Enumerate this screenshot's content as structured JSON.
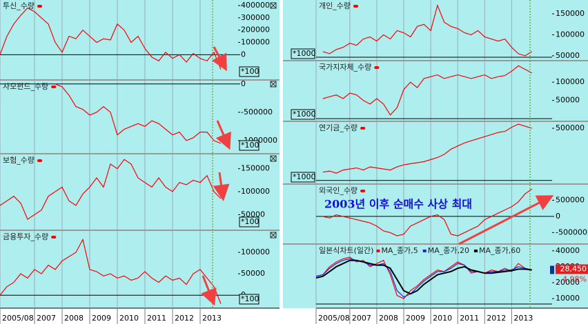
{
  "chart_data": [
    {
      "type": "line",
      "title": "투신_수량",
      "unit_label": "*100",
      "x": [
        2005.75,
        2006,
        2006.25,
        2006.5,
        2006.75,
        2007,
        2007.25,
        2007.5,
        2007.75,
        2008,
        2008.25,
        2008.5,
        2008.75,
        2009,
        2009.25,
        2009.5,
        2009.75,
        2010,
        2010.25,
        2010.5,
        2010.75,
        2011,
        2011.25,
        2011.5,
        2011.75,
        2012,
        2012.25,
        2012.5,
        2012.75,
        2013,
        2013.25,
        2013.5,
        2013.75
      ],
      "xlim": [
        2005.75,
        2014.375
      ],
      "ylim": [
        -200000,
        445000
      ],
      "yticks": [
        0,
        100000,
        200000,
        300000,
        400000
      ],
      "series": [
        {
          "color": "#ff0000",
          "values": [
            0,
            150000,
            250000,
            320000,
            380000,
            350000,
            300000,
            250000,
            100000,
            20000,
            150000,
            130000,
            200000,
            150000,
            100000,
            130000,
            120000,
            250000,
            200000,
            100000,
            150000,
            50000,
            -20000,
            -50000,
            20000,
            -30000,
            0,
            -60000,
            10000,
            -30000,
            -50000,
            20000,
            -120000
          ]
        }
      ]
    },
    {
      "type": "line",
      "title": "사모펀드_수량",
      "unit_label": "*100",
      "x": [
        2005.75,
        2006,
        2006.25,
        2006.5,
        2006.75,
        2007,
        2007.25,
        2007.5,
        2007.75,
        2008,
        2008.25,
        2008.5,
        2008.75,
        2009,
        2009.25,
        2009.5,
        2009.75,
        2010,
        2010.25,
        2010.5,
        2010.75,
        2011,
        2011.25,
        2011.5,
        2011.75,
        2012,
        2012.25,
        2012.5,
        2012.75,
        2013,
        2013.25,
        2013.5,
        2013.75
      ],
      "xlim": [
        2005.75,
        2014.375
      ],
      "ylim": [
        -1220000,
        58000
      ],
      "yticks": [
        -1000000,
        -500000,
        0
      ],
      "series": [
        {
          "color": "#ff0000",
          "values": [
            null,
            null,
            null,
            null,
            null,
            null,
            null,
            null,
            0,
            -50000,
            -200000,
            -400000,
            -450000,
            -550000,
            -500000,
            -400000,
            -500000,
            -900000,
            -800000,
            -750000,
            -700000,
            -750000,
            -650000,
            -700000,
            -800000,
            -900000,
            -850000,
            -1000000,
            -950000,
            -850000,
            -850000,
            -1000000,
            -1050000
          ]
        }
      ]
    },
    {
      "type": "line",
      "title": "보험_수량",
      "unit_label": "*100",
      "x": [
        2005.75,
        2006,
        2006.25,
        2006.5,
        2006.75,
        2007,
        2007.25,
        2007.5,
        2007.75,
        2008,
        2008.25,
        2008.5,
        2008.75,
        2009,
        2009.25,
        2009.5,
        2009.75,
        2010,
        2010.25,
        2010.5,
        2010.75,
        2011,
        2011.25,
        2011.5,
        2011.75,
        2012,
        2012.25,
        2012.5,
        2012.75,
        2013,
        2013.25,
        2013.5,
        2013.75
      ],
      "xlim": [
        2005.75,
        2014.375
      ],
      "ylim": [
        17600,
        181000
      ],
      "yticks": [
        50000,
        100000,
        150000
      ],
      "series": [
        {
          "color": "#ff0000",
          "values": [
            70000,
            80000,
            90000,
            75000,
            40000,
            50000,
            60000,
            90000,
            100000,
            110000,
            80000,
            70000,
            95000,
            110000,
            130000,
            110000,
            160000,
            150000,
            170000,
            160000,
            130000,
            120000,
            110000,
            130000,
            110000,
            100000,
            120000,
            115000,
            125000,
            120000,
            135000,
            100000,
            85000
          ]
        }
      ]
    },
    {
      "type": "line",
      "title": "금융투자_수량",
      "unit_label": "*100",
      "x": [
        2005.75,
        2006,
        2006.25,
        2006.5,
        2006.75,
        2007,
        2007.25,
        2007.5,
        2007.75,
        2008,
        2008.25,
        2008.5,
        2008.75,
        2009,
        2009.25,
        2009.5,
        2009.75,
        2010,
        2010.25,
        2010.5,
        2010.75,
        2011,
        2011.25,
        2011.5,
        2011.75,
        2012,
        2012.25,
        2012.5,
        2012.75,
        2013,
        2013.25,
        2013.5,
        2013.75
      ],
      "xlim": [
        2005.75,
        2014.375
      ],
      "ylim": [
        -27000,
        150000
      ],
      "yticks": [
        0,
        50000,
        100000
      ],
      "xticks": [
        {
          "value": 2005.75,
          "label": "2005/08"
        },
        2007,
        2008,
        2009,
        2010,
        2011,
        2012,
        2013
      ],
      "series": [
        {
          "color": "#ff0000",
          "values": [
            0,
            20000,
            30000,
            50000,
            40000,
            60000,
            50000,
            70000,
            60000,
            80000,
            90000,
            100000,
            130000,
            60000,
            55000,
            45000,
            50000,
            40000,
            45000,
            35000,
            40000,
            55000,
            40000,
            30000,
            45000,
            35000,
            40000,
            25000,
            50000,
            60000,
            40000,
            20000,
            -20000
          ]
        }
      ]
    },
    {
      "type": "line",
      "title": "개인_수량",
      "unit_label": "*1000",
      "x": [
        2005.75,
        2006,
        2006.25,
        2006.5,
        2006.75,
        2007,
        2007.25,
        2007.5,
        2007.75,
        2008,
        2008.25,
        2008.5,
        2008.75,
        2009,
        2009.25,
        2009.5,
        2009.75,
        2010,
        2010.25,
        2010.5,
        2010.75,
        2011,
        2011.25,
        2011.5,
        2011.75,
        2012,
        2012.25,
        2012.5,
        2012.75,
        2013,
        2013.25,
        2013.5,
        2013.75
      ],
      "xlim": [
        2005.75,
        2014.5
      ],
      "ylim": [
        40000,
        183000
      ],
      "yticks": [
        50000,
        100000,
        150000
      ],
      "series": [
        {
          "color": "#ff0000",
          "values": [
            null,
            60000,
            55000,
            65000,
            70000,
            80000,
            75000,
            90000,
            95000,
            85000,
            100000,
            90000,
            110000,
            105000,
            95000,
            120000,
            125000,
            110000,
            170000,
            130000,
            120000,
            115000,
            105000,
            100000,
            110000,
            95000,
            90000,
            85000,
            90000,
            70000,
            55000,
            50000,
            60000
          ]
        }
      ]
    },
    {
      "type": "line",
      "title": "국가지자체_수량",
      "unit_label": "*1000",
      "x": [
        2005.75,
        2006,
        2006.25,
        2006.5,
        2006.75,
        2007,
        2007.25,
        2007.5,
        2007.75,
        2008,
        2008.25,
        2008.5,
        2008.75,
        2009,
        2009.25,
        2009.5,
        2009.75,
        2010,
        2010.25,
        2010.5,
        2010.75,
        2011,
        2011.25,
        2011.5,
        2011.75,
        2012,
        2012.25,
        2012.5,
        2012.75,
        2013,
        2013.25,
        2013.5,
        2013.75
      ],
      "xlim": [
        2005.75,
        2014.5
      ],
      "ylim": [
        -5500,
        157000
      ],
      "yticks": [
        50000,
        100000
      ],
      "series": [
        {
          "color": "#ff0000",
          "values": [
            null,
            55000,
            60000,
            65000,
            55000,
            70000,
            65000,
            50000,
            40000,
            55000,
            40000,
            10000,
            30000,
            80000,
            100000,
            85000,
            110000,
            115000,
            120000,
            110000,
            115000,
            120000,
            115000,
            110000,
            115000,
            120000,
            110000,
            115000,
            118000,
            130000,
            145000,
            135000,
            125000
          ]
        }
      ]
    },
    {
      "type": "line",
      "title": "연기금_수량",
      "unit_label": "*1000",
      "x": [
        2005.75,
        2006,
        2006.25,
        2006.5,
        2006.75,
        2007,
        2007.25,
        2007.5,
        2007.75,
        2008,
        2008.25,
        2008.5,
        2008.75,
        2009,
        2009.25,
        2009.5,
        2009.75,
        2010,
        2010.25,
        2010.5,
        2010.75,
        2011,
        2011.25,
        2011.5,
        2011.75,
        2012,
        2012.25,
        2012.5,
        2012.75,
        2013,
        2013.25,
        2013.5,
        2013.75
      ],
      "xlim": [
        2005.75,
        2014.5
      ],
      "ylim": [
        -28000,
        560000
      ],
      "yticks": [
        500000
      ],
      "series": [
        {
          "color": "#ff0000",
          "values": [
            null,
            80000,
            90000,
            70000,
            100000,
            110000,
            120000,
            100000,
            130000,
            120000,
            110000,
            100000,
            130000,
            150000,
            160000,
            170000,
            180000,
            200000,
            220000,
            250000,
            300000,
            330000,
            360000,
            380000,
            400000,
            420000,
            440000,
            460000,
            470000,
            510000,
            540000,
            520000,
            500000
          ]
        }
      ]
    },
    {
      "type": "line",
      "title": "외국인_수량",
      "annotation": "2003년 이후 순매수 사상 최대",
      "x": [
        2005.75,
        2006,
        2006.25,
        2006.5,
        2006.75,
        2007,
        2007.25,
        2007.5,
        2007.75,
        2008,
        2008.25,
        2008.5,
        2008.75,
        2009,
        2009.25,
        2009.5,
        2009.75,
        2010,
        2010.25,
        2010.5,
        2010.75,
        2011,
        2011.25,
        2011.5,
        2011.75,
        2012,
        2012.25,
        2012.5,
        2012.75,
        2013,
        2013.25,
        2013.5,
        2013.75
      ],
      "xlim": [
        2005.75,
        2014.5
      ],
      "ylim": [
        -833000,
        979000
      ],
      "yticks": [
        -500000,
        0,
        500000
      ],
      "series": [
        {
          "color": "#ff0000",
          "values": [
            null,
            0,
            -50000,
            50000,
            0,
            -50000,
            -100000,
            -150000,
            -200000,
            -300000,
            -450000,
            -500000,
            -600000,
            -550000,
            -300000,
            -200000,
            -100000,
            0,
            50000,
            -100000,
            -550000,
            -600000,
            -500000,
            -400000,
            -300000,
            -100000,
            0,
            100000,
            200000,
            300000,
            450000,
            700000,
            850000
          ]
        }
      ]
    },
    {
      "type": "line",
      "title": "일본식차트(일간)",
      "last_price": 28450,
      "last_price_label": "28,450",
      "change_label": "4.98%",
      "x": [
        2005.75,
        2006,
        2006.25,
        2006.5,
        2006.75,
        2007,
        2007.25,
        2007.5,
        2007.75,
        2008,
        2008.25,
        2008.5,
        2008.75,
        2009,
        2009.25,
        2009.5,
        2009.75,
        2010,
        2010.25,
        2010.5,
        2010.75,
        2011,
        2011.25,
        2011.5,
        2011.75,
        2012,
        2012.25,
        2012.5,
        2012.75,
        2013,
        2013.25,
        2013.5,
        2013.75
      ],
      "xlim": [
        2005.75,
        2014.5
      ],
      "ylim": [
        4900,
        43800
      ],
      "yticks": [
        10000,
        20000,
        30000,
        40000
      ],
      "xticks": [
        {
          "value": 2005.75,
          "label": "2005/08"
        },
        2007,
        2008,
        2009,
        2010,
        2011,
        2012,
        2013
      ],
      "series": [
        {
          "name": "MA_종가,5",
          "color": "#ff0000",
          "values": [
            24000,
            25000,
            30000,
            33000,
            35000,
            36000,
            33000,
            34000,
            30000,
            32000,
            34000,
            25000,
            12000,
            10000,
            15000,
            18000,
            22000,
            25000,
            28000,
            27000,
            30000,
            33000,
            31000,
            26000,
            27000,
            26000,
            28000,
            27000,
            29000,
            27000,
            32000,
            29000,
            28000
          ]
        },
        {
          "name": "MA_종가,20",
          "color": "#2020e0",
          "values": [
            24000,
            25000,
            29000,
            32000,
            34000,
            35000,
            34000,
            33000,
            31000,
            31000,
            32000,
            27000,
            15000,
            11000,
            13000,
            17000,
            21000,
            24000,
            27000,
            27000,
            29000,
            32000,
            31000,
            27000,
            27000,
            26000,
            27000,
            27000,
            28000,
            28000,
            30000,
            29000,
            28000
          ]
        },
        {
          "name": "MA_종가,60",
          "color": "#000000",
          "values": [
            23000,
            24000,
            27000,
            30000,
            32000,
            34000,
            34000,
            33000,
            32000,
            31000,
            31000,
            29000,
            22000,
            15000,
            13000,
            15000,
            19000,
            22000,
            25000,
            26000,
            27000,
            29000,
            30000,
            28000,
            27000,
            26000,
            26000,
            26500,
            27000,
            27500,
            28500,
            28500,
            28000
          ]
        }
      ]
    }
  ]
}
